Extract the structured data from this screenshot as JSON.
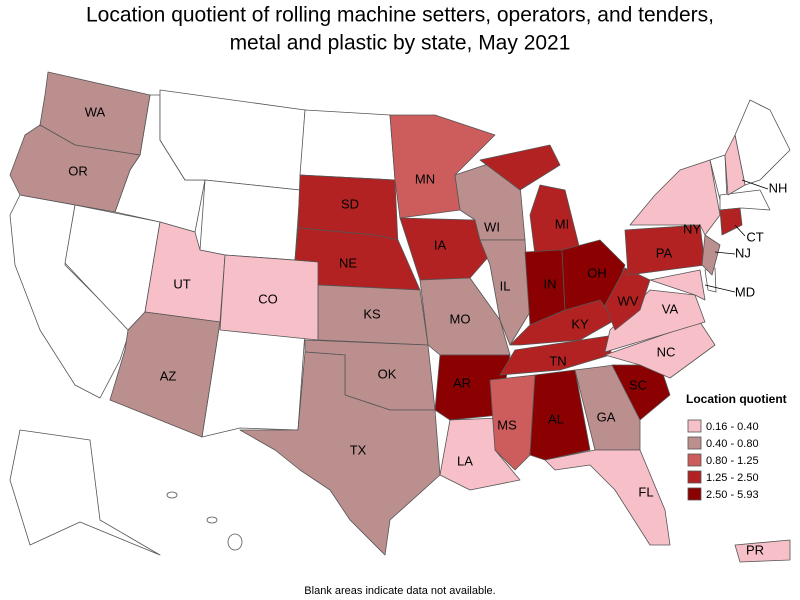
{
  "title_lines": [
    "Location quotient of rolling machine setters, operators, and tenders,",
    "metal and plastic by state, May 2021"
  ],
  "legend": {
    "title": "Location quotient",
    "items": [
      {
        "label": "0.16 - 0.40",
        "color": "#f7c0c9"
      },
      {
        "label": "0.40 - 0.80",
        "color": "#bc8f8f"
      },
      {
        "label": "0.80 - 1.25",
        "color": "#cd5c5c"
      },
      {
        "label": "1.25 - 2.50",
        "color": "#b22222"
      },
      {
        "label": "2.50 - 5.93",
        "color": "#8b0000"
      }
    ]
  },
  "states": [
    {
      "label": "WA",
      "color": "#bc8f8f"
    },
    {
      "label": "OR",
      "color": "#bc8f8f"
    },
    {
      "label": "UT",
      "color": "#f7c0c9"
    },
    {
      "label": "CO",
      "color": "#f7c0c9"
    },
    {
      "label": "AZ",
      "color": "#bc8f8f"
    },
    {
      "label": "SD",
      "color": "#b22222"
    },
    {
      "label": "NE",
      "color": "#b22222"
    },
    {
      "label": "KS",
      "color": "#bc8f8f"
    },
    {
      "label": "OK",
      "color": "#bc8f8f"
    },
    {
      "label": "TX",
      "color": "#bc8f8f"
    },
    {
      "label": "MN",
      "color": "#cd5c5c"
    },
    {
      "label": "IA",
      "color": "#b22222"
    },
    {
      "label": "MO",
      "color": "#bc8f8f"
    },
    {
      "label": "AR",
      "color": "#8b0000"
    },
    {
      "label": "LA",
      "color": "#f7c0c9"
    },
    {
      "label": "WI",
      "color": "#bc8f8f"
    },
    {
      "label": "IL",
      "color": "#bc8f8f"
    },
    {
      "label": "MI",
      "color": "#b22222"
    },
    {
      "label": "IN",
      "color": "#8b0000"
    },
    {
      "label": "OH",
      "color": "#8b0000"
    },
    {
      "label": "KY",
      "color": "#b22222"
    },
    {
      "label": "TN",
      "color": "#b22222"
    },
    {
      "label": "MS",
      "color": "#cd5c5c"
    },
    {
      "label": "AL",
      "color": "#8b0000"
    },
    {
      "label": "GA",
      "color": "#bc8f8f"
    },
    {
      "label": "FL",
      "color": "#f7c0c9"
    },
    {
      "label": "SC",
      "color": "#8b0000"
    },
    {
      "label": "NC",
      "color": "#f7c0c9"
    },
    {
      "label": "VA",
      "color": "#f7c0c9"
    },
    {
      "label": "WV",
      "color": "#b22222"
    },
    {
      "label": "PA",
      "color": "#b22222"
    },
    {
      "label": "NY",
      "color": "#f7c0c9"
    },
    {
      "label": "NJ",
      "color": "#bc8f8f"
    },
    {
      "label": "CT",
      "color": "#b22222"
    },
    {
      "label": "MD",
      "color": "#f7c0c9"
    },
    {
      "label": "NH",
      "color": "#f7c0c9"
    },
    {
      "label": "PR",
      "color": "#f7c0c9"
    }
  ],
  "footnote": "Blank areas indicate data not available."
}
